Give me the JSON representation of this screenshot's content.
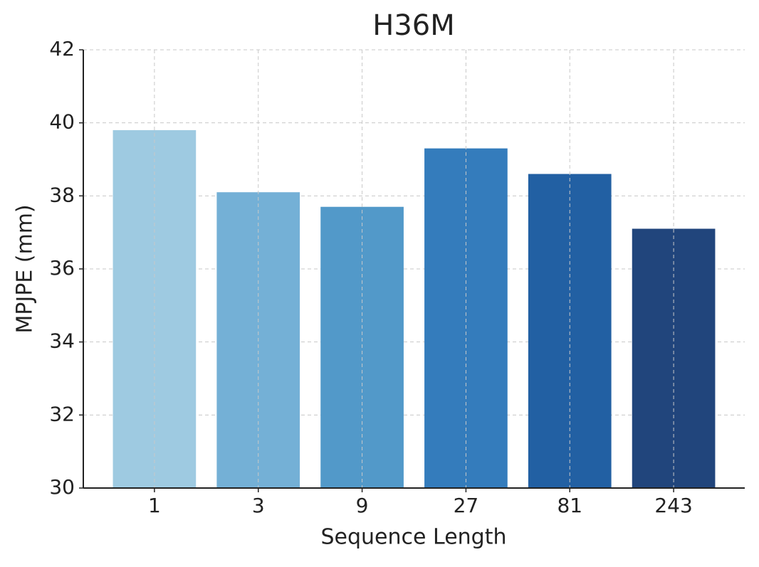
{
  "chart_data": {
    "type": "bar",
    "title": "H36M",
    "x_label": "Sequence Length",
    "y_label": "MPJPE (mm)",
    "categories": [
      "1",
      "3",
      "9",
      "27",
      "81",
      "243"
    ],
    "values": [
      39.8,
      38.1,
      37.7,
      39.3,
      38.6,
      37.1
    ],
    "colors": [
      "#9ecae1",
      "#74b0d6",
      "#5299c9",
      "#347cbc",
      "#2260a3",
      "#21457c"
    ],
    "ylim": [
      30,
      42
    ],
    "yticks": [
      30,
      32,
      34,
      36,
      38,
      40,
      42
    ],
    "grid": true
  }
}
